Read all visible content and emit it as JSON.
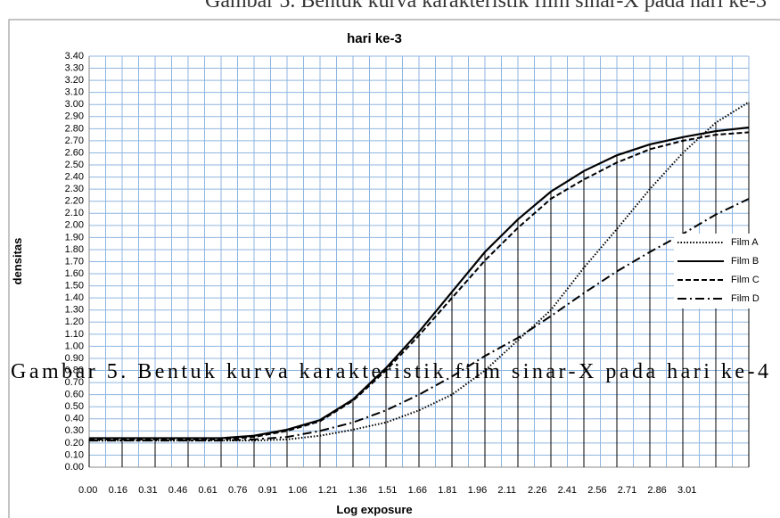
{
  "captions": [
    "Gambar 5. Bentuk kurva karakteristik film sinar-X pada hari ke-3",
    "Gambar 5. Bentuk kurva karakteristik film sinar-X pada hari ke-4"
  ],
  "chart_data": {
    "type": "line",
    "title": "hari ke-3",
    "x_label": "Log exposure",
    "y_label": "densitas",
    "categories": [
      "0.00",
      "0.16",
      "0.31",
      "0.46",
      "0.61",
      "0.76",
      "0.91",
      "1.06",
      "1.21",
      "1.36",
      "1.51",
      "1.66",
      "1.81",
      "1.96",
      "2.11",
      "2.26",
      "2.41",
      "2.56",
      "2.71",
      "2.86",
      "3.01"
    ],
    "series": [
      {
        "name": "Film A",
        "color": "#000000",
        "dash": "dotted",
        "values": [
          0.22,
          0.22,
          0.22,
          0.22,
          0.22,
          0.22,
          0.23,
          0.26,
          0.31,
          0.37,
          0.47,
          0.6,
          0.8,
          1.05,
          1.3,
          1.65,
          1.97,
          2.3,
          2.6,
          2.85,
          3.02
        ]
      },
      {
        "name": "Film B",
        "color": "#000000",
        "dash": "solid",
        "values": [
          0.24,
          0.24,
          0.24,
          0.24,
          0.24,
          0.26,
          0.31,
          0.39,
          0.56,
          0.82,
          1.12,
          1.45,
          1.78,
          2.05,
          2.28,
          2.45,
          2.58,
          2.67,
          2.73,
          2.78,
          2.81
        ]
      },
      {
        "name": "Film C",
        "color": "#000000",
        "dash": "dashed",
        "values": [
          0.23,
          0.23,
          0.23,
          0.23,
          0.23,
          0.25,
          0.3,
          0.38,
          0.55,
          0.8,
          1.09,
          1.4,
          1.71,
          1.98,
          2.22,
          2.38,
          2.52,
          2.63,
          2.7,
          2.75,
          2.77
        ]
      },
      {
        "name": "Film D",
        "color": "#000000",
        "dash": "dashdot",
        "values": [
          0.22,
          0.22,
          0.22,
          0.22,
          0.22,
          0.23,
          0.25,
          0.3,
          0.37,
          0.47,
          0.6,
          0.75,
          0.92,
          1.07,
          1.25,
          1.44,
          1.62,
          1.78,
          1.93,
          2.09,
          2.22
        ]
      }
    ],
    "ylim": [
      0,
      3.4
    ],
    "yticks": [
      {
        "value": 0,
        "label": "0.00"
      },
      {
        "value": 0.1,
        "label": "0.10"
      },
      {
        "value": 0.2,
        "label": "0.20"
      },
      {
        "value": 0.3,
        "label": "0.30"
      },
      {
        "value": 0.4,
        "label": "0.40"
      },
      {
        "value": 0.5,
        "label": "0.50"
      },
      {
        "value": 0.6,
        "label": "0.60"
      },
      {
        "value": 0.7,
        "label": "0.70"
      },
      {
        "value": 0.8,
        "label": "0.80"
      },
      {
        "value": 0.9,
        "label": "0.90"
      },
      {
        "value": 1,
        "label": "1.00"
      },
      {
        "value": 1.1,
        "label": "1.10"
      },
      {
        "value": 1.2,
        "label": "1.20"
      },
      {
        "value": 1.3,
        "label": "1.30"
      },
      {
        "value": 1.4,
        "label": "1.40"
      },
      {
        "value": 1.5,
        "label": "1.50"
      },
      {
        "value": 1.6,
        "label": "1.60"
      },
      {
        "value": 1.7,
        "label": "1.70"
      },
      {
        "value": 1.8,
        "label": "1.80"
      },
      {
        "value": 1.9,
        "label": "1.90"
      },
      {
        "value": 2,
        "label": "2.00"
      },
      {
        "value": 2.1,
        "label": "2.10"
      },
      {
        "value": 2.2,
        "label": "2.20"
      },
      {
        "value": 2.3,
        "label": "2.30"
      },
      {
        "value": 2.4,
        "label": "2.40"
      },
      {
        "value": 2.5,
        "label": "2.50"
      },
      {
        "value": 2.6,
        "label": "2.60"
      },
      {
        "value": 2.7,
        "label": "2.70"
      },
      {
        "value": 2.8,
        "label": "2.80"
      },
      {
        "value": 2.9,
        "label": "2.90"
      },
      {
        "value": 3,
        "label": "3.00"
      },
      {
        "value": 3.1,
        "label": "3.10"
      },
      {
        "value": 3.2,
        "label": "3.20"
      },
      {
        "value": 3.3,
        "label": "3.30"
      },
      {
        "value": 3.4,
        "label": "3.40"
      }
    ],
    "grid": true,
    "legend": "right"
  }
}
